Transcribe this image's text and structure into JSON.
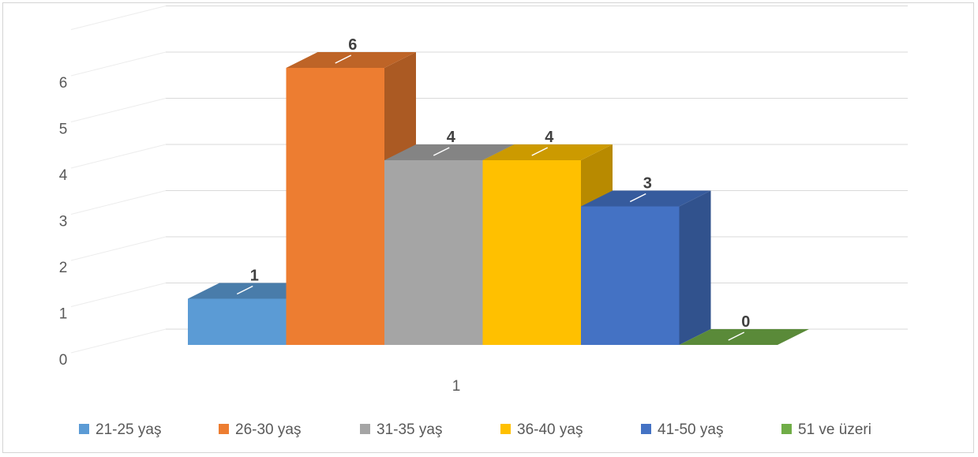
{
  "chart_data": {
    "type": "bar",
    "categories": [
      "1"
    ],
    "series": [
      {
        "name": "21-25 yaş",
        "values": [
          1
        ],
        "color": "#5B9BD5"
      },
      {
        "name": "26-30 yaş",
        "values": [
          6
        ],
        "color": "#ED7D31"
      },
      {
        "name": "31-35 yaş",
        "values": [
          4
        ],
        "color": "#A5A5A5"
      },
      {
        "name": "36-40 yaş",
        "values": [
          4
        ],
        "color": "#FFC000"
      },
      {
        "name": "41-50 yaş",
        "values": [
          3
        ],
        "color": "#4472C4"
      },
      {
        "name": "51 ve üzeri",
        "values": [
          0
        ],
        "color": "#70AD47"
      }
    ],
    "yticks": [
      "0",
      "1",
      "2",
      "3",
      "4",
      "5",
      "6"
    ],
    "ylim": [
      0,
      6
    ],
    "grid": true,
    "legend": "bottom",
    "style": "3d-clustered-column"
  }
}
